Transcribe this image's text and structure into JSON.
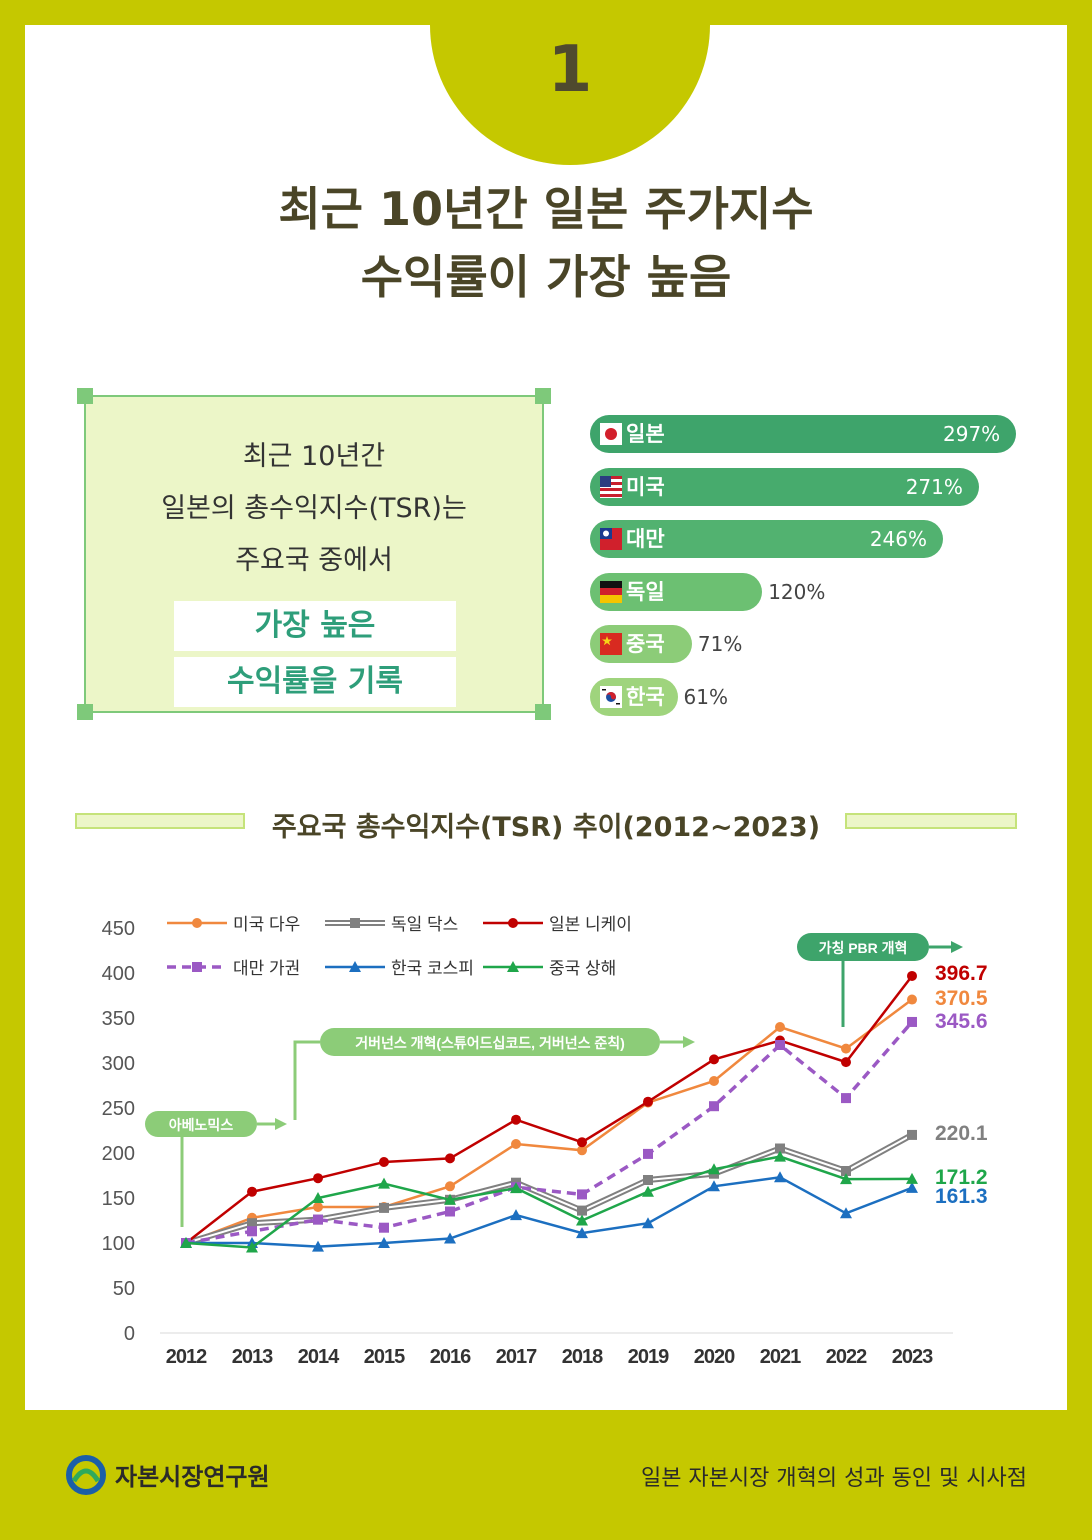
{
  "badge_number": "1",
  "title": {
    "line1": "최근 10년간 일본 주가지수",
    "line2": "수익률이 가장 높음"
  },
  "summary": {
    "line1": "최근 10년간",
    "line2": "일본의 총수익지수(TSR)는",
    "line3": "주요국 중에서",
    "highlight1": "가장 높은",
    "highlight2": "수익률을 기록"
  },
  "ranking": [
    {
      "country": "일본",
      "value_label": "297%",
      "value": 297,
      "color": "#3ea46b",
      "flag": "japan-flag-icon"
    },
    {
      "country": "미국",
      "value_label": "271%",
      "value": 271,
      "color": "#47ab6d",
      "flag": "usa-flag-icon"
    },
    {
      "country": "대만",
      "value_label": "246%",
      "value": 246,
      "color": "#52b270",
      "flag": "taiwan-flag-icon"
    },
    {
      "country": "독일",
      "value_label": "120%",
      "value": 120,
      "color": "#6cc072",
      "flag": "germany-flag-icon"
    },
    {
      "country": "중국",
      "value_label": "71%",
      "value": 71,
      "color": "#8ccc78",
      "flag": "china-flag-icon"
    },
    {
      "country": "한국",
      "value_label": "61%",
      "value": 61,
      "color": "#9fd47d",
      "flag": "korea-flag-icon"
    }
  ],
  "chart_section_title": "주요국 총수익지수(TSR) 추이(2012~2023)",
  "chart_data": {
    "type": "line",
    "title": "주요국 총수익지수(TSR) 추이(2012~2023)",
    "x": [
      "2012",
      "2013",
      "2014",
      "2015",
      "2016",
      "2017",
      "2018",
      "2019",
      "2020",
      "2021",
      "2022",
      "2023"
    ],
    "ylim": [
      0,
      450
    ],
    "yticks": [
      0,
      50,
      100,
      150,
      200,
      250,
      300,
      350,
      400,
      450
    ],
    "grid": false,
    "legend_position": "top-left",
    "series": [
      {
        "name": "미국 다우",
        "color": "#f0883e",
        "marker": "circle",
        "dashed": false,
        "values": [
          100,
          128,
          140,
          140,
          163,
          210,
          203,
          256,
          280,
          340,
          316,
          370.5
        ]
      },
      {
        "name": "독일 닥스",
        "color": "#808080",
        "marker": "square",
        "dashed": false,
        "double": true,
        "values": [
          100,
          122,
          126,
          139,
          148,
          167,
          136,
          170,
          177,
          205,
          180,
          220.1
        ]
      },
      {
        "name": "일본 니케이",
        "color": "#c00000",
        "marker": "circle",
        "dashed": false,
        "values": [
          100,
          157,
          172,
          190,
          194,
          237,
          212,
          257,
          304,
          325,
          301,
          396.7
        ]
      },
      {
        "name": "대만 가권",
        "color": "#9b59c4",
        "marker": "square",
        "dashed": true,
        "values": [
          100,
          113,
          126,
          117,
          135,
          162,
          154,
          199,
          252,
          320,
          261,
          345.6
        ]
      },
      {
        "name": "한국 코스피",
        "color": "#1c6fc0",
        "marker": "triangle",
        "dashed": false,
        "values": [
          100,
          100,
          96,
          100,
          105,
          131,
          111,
          122,
          163,
          173,
          133,
          161.3
        ]
      },
      {
        "name": "중국 상해",
        "color": "#1fa64a",
        "marker": "triangle",
        "dashed": false,
        "values": [
          100,
          95,
          150,
          166,
          148,
          161,
          125,
          157,
          182,
          196,
          171,
          171.2
        ]
      }
    ],
    "end_labels": [
      {
        "text": "396.7",
        "color": "#c00000"
      },
      {
        "text": "370.5",
        "color": "#f0883e"
      },
      {
        "text": "345.6",
        "color": "#9b59c4"
      },
      {
        "text": "220.1",
        "color": "#808080"
      },
      {
        "text": "171.2",
        "color": "#1fa64a"
      },
      {
        "text": "161.3",
        "color": "#1c6fc0"
      }
    ],
    "annotations": [
      {
        "text": "아베노믹스",
        "year": "2012"
      },
      {
        "text": "거버넌스 개혁(스튜어드십코드, 거버넌스 준칙)",
        "year": "2014"
      },
      {
        "text": "가칭 PBR 개혁",
        "year": "2022"
      }
    ]
  },
  "footer": {
    "org": "자본시장연구원",
    "subtitle": "일본 자본시장 개혁의 성과 동인 및 시사점"
  }
}
